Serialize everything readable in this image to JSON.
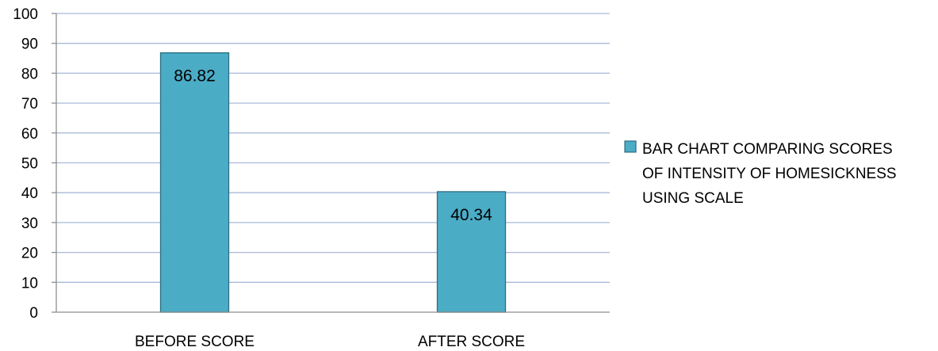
{
  "chart_data": {
    "type": "bar",
    "categories": [
      "BEFORE SCORE",
      "AFTER SCORE"
    ],
    "values": [
      86.82,
      40.34
    ],
    "data_labels": [
      "86.82",
      "40.34"
    ],
    "series": [
      {
        "name": "BAR CHART COMPARING SCORES OF INTENSITY OF HOMESICKNESS USING SCALE",
        "values": [
          86.82,
          40.34
        ]
      }
    ],
    "legend_lines": [
      "BAR CHART COMPARING SCORES",
      "OF INTENSITY OF HOMESICKNESS",
      "USING SCALE"
    ],
    "ylim": [
      0,
      100
    ],
    "yticks": [
      0,
      10,
      20,
      30,
      40,
      50,
      60,
      70,
      80,
      90,
      100
    ],
    "grid": true,
    "legend_position": "right",
    "colors": {
      "bar_fill": "#4BACC6",
      "bar_stroke": "#2C6E7F",
      "gridline": "#A9B8D9",
      "axis": "#8E8E8E"
    }
  }
}
